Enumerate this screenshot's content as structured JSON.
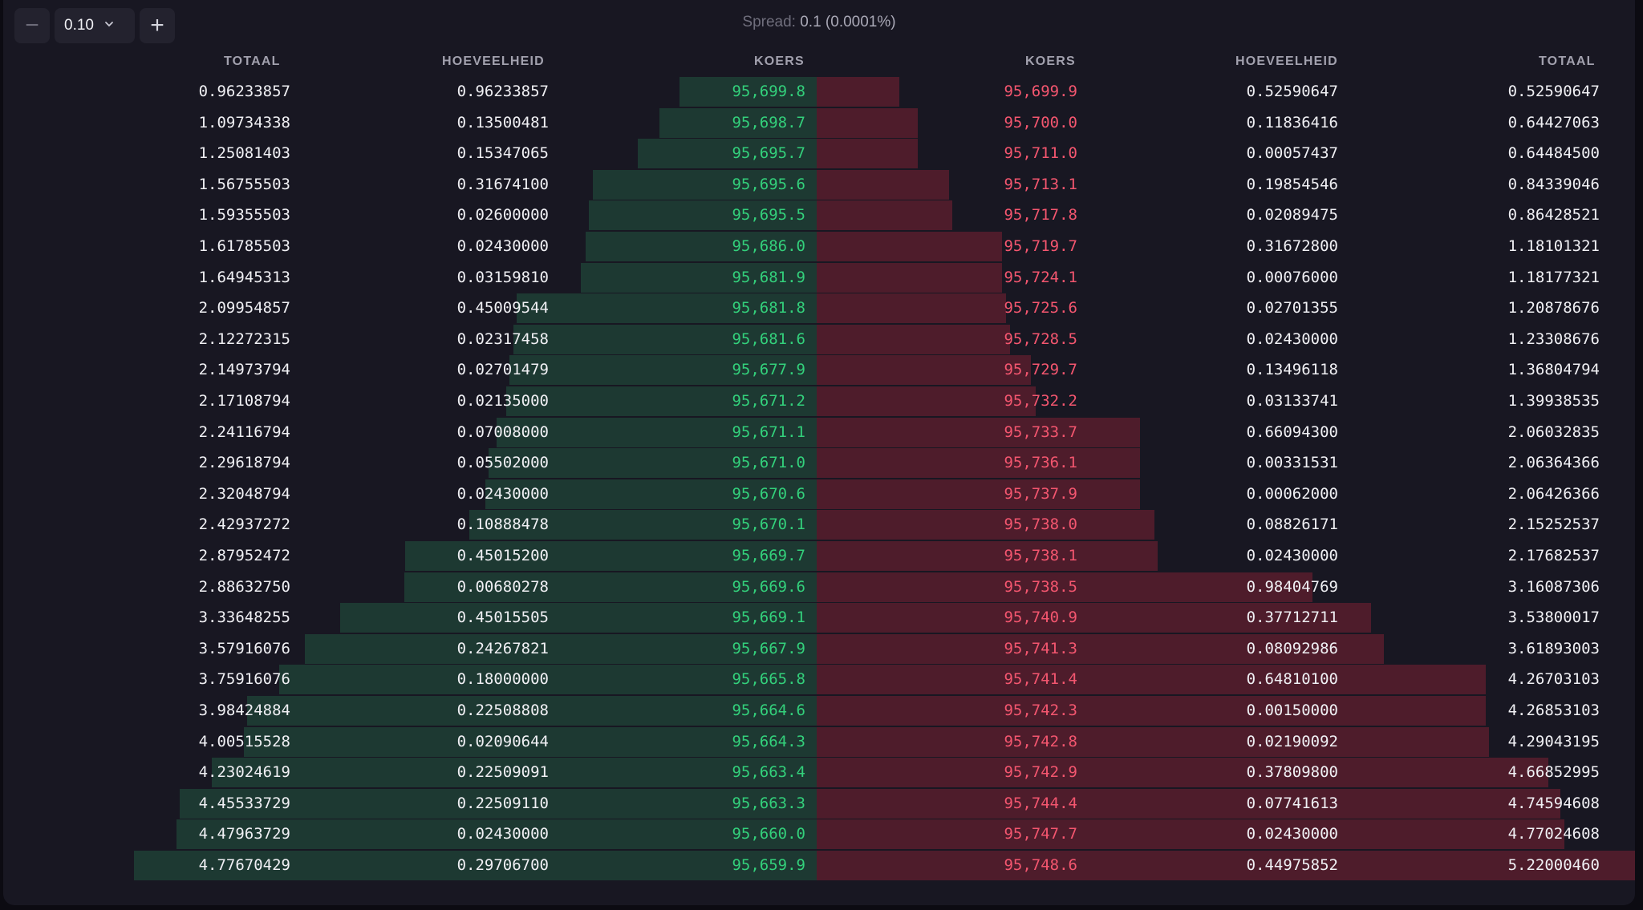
{
  "toolbar": {
    "decrement_symbol": "−",
    "increment_symbol": "+",
    "tick_size": "0.10",
    "chevron": "⌄"
  },
  "spread": {
    "label": "Spread:",
    "value": "0.1 (0.0001%)"
  },
  "headers": {
    "bid_total": "TOTAAL",
    "bid_amount": "HOEVEELHEID",
    "bid_price": "KOERS",
    "ask_price": "KOERS",
    "ask_amount": "HOEVEELHEID",
    "ask_total": "TOTAAL"
  },
  "colors": {
    "bid_price": "#33d07b",
    "ask_price": "#f4566f",
    "bid_depth": "#1d3932",
    "ask_depth": "#4e1c2b",
    "background": "#181722"
  },
  "orderbook": {
    "max_total": 5.2200046,
    "bids": [
      {
        "total": "0.96233857",
        "amount": "0.96233857",
        "price": "95,699.8"
      },
      {
        "total": "1.09734338",
        "amount": "0.13500481",
        "price": "95,698.7"
      },
      {
        "total": "1.25081403",
        "amount": "0.15347065",
        "price": "95,695.7"
      },
      {
        "total": "1.56755503",
        "amount": "0.31674100",
        "price": "95,695.6"
      },
      {
        "total": "1.59355503",
        "amount": "0.02600000",
        "price": "95,695.5"
      },
      {
        "total": "1.61785503",
        "amount": "0.02430000",
        "price": "95,686.0"
      },
      {
        "total": "1.64945313",
        "amount": "0.03159810",
        "price": "95,681.9"
      },
      {
        "total": "2.09954857",
        "amount": "0.45009544",
        "price": "95,681.8"
      },
      {
        "total": "2.12272315",
        "amount": "0.02317458",
        "price": "95,681.6"
      },
      {
        "total": "2.14973794",
        "amount": "0.02701479",
        "price": "95,677.9"
      },
      {
        "total": "2.17108794",
        "amount": "0.02135000",
        "price": "95,671.2"
      },
      {
        "total": "2.24116794",
        "amount": "0.07008000",
        "price": "95,671.1"
      },
      {
        "total": "2.29618794",
        "amount": "0.05502000",
        "price": "95,671.0"
      },
      {
        "total": "2.32048794",
        "amount": "0.02430000",
        "price": "95,670.6"
      },
      {
        "total": "2.42937272",
        "amount": "0.10888478",
        "price": "95,670.1"
      },
      {
        "total": "2.87952472",
        "amount": "0.45015200",
        "price": "95,669.7"
      },
      {
        "total": "2.88632750",
        "amount": "0.00680278",
        "price": "95,669.6"
      },
      {
        "total": "3.33648255",
        "amount": "0.45015505",
        "price": "95,669.1"
      },
      {
        "total": "3.57916076",
        "amount": "0.24267821",
        "price": "95,667.9"
      },
      {
        "total": "3.75916076",
        "amount": "0.18000000",
        "price": "95,665.8"
      },
      {
        "total": "3.98424884",
        "amount": "0.22508808",
        "price": "95,664.6"
      },
      {
        "total": "4.00515528",
        "amount": "0.02090644",
        "price": "95,664.3"
      },
      {
        "total": "4.23024619",
        "amount": "0.22509091",
        "price": "95,663.4"
      },
      {
        "total": "4.45533729",
        "amount": "0.22509110",
        "price": "95,663.3"
      },
      {
        "total": "4.47963729",
        "amount": "0.02430000",
        "price": "95,660.0"
      },
      {
        "total": "4.77670429",
        "amount": "0.29706700",
        "price": "95,659.9"
      }
    ],
    "asks": [
      {
        "price": "95,699.9",
        "amount": "0.52590647",
        "total": "0.52590647"
      },
      {
        "price": "95,700.0",
        "amount": "0.11836416",
        "total": "0.64427063"
      },
      {
        "price": "95,711.0",
        "amount": "0.00057437",
        "total": "0.64484500"
      },
      {
        "price": "95,713.1",
        "amount": "0.19854546",
        "total": "0.84339046"
      },
      {
        "price": "95,717.8",
        "amount": "0.02089475",
        "total": "0.86428521"
      },
      {
        "price": "95,719.7",
        "amount": "0.31672800",
        "total": "1.18101321"
      },
      {
        "price": "95,724.1",
        "amount": "0.00076000",
        "total": "1.18177321"
      },
      {
        "price": "95,725.6",
        "amount": "0.02701355",
        "total": "1.20878676"
      },
      {
        "price": "95,728.5",
        "amount": "0.02430000",
        "total": "1.23308676"
      },
      {
        "price": "95,729.7",
        "amount": "0.13496118",
        "total": "1.36804794"
      },
      {
        "price": "95,732.2",
        "amount": "0.03133741",
        "total": "1.39938535"
      },
      {
        "price": "95,733.7",
        "amount": "0.66094300",
        "total": "2.06032835"
      },
      {
        "price": "95,736.1",
        "amount": "0.00331531",
        "total": "2.06364366"
      },
      {
        "price": "95,737.9",
        "amount": "0.00062000",
        "total": "2.06426366"
      },
      {
        "price": "95,738.0",
        "amount": "0.08826171",
        "total": "2.15252537"
      },
      {
        "price": "95,738.1",
        "amount": "0.02430000",
        "total": "2.17682537"
      },
      {
        "price": "95,738.5",
        "amount": "0.98404769",
        "total": "3.16087306"
      },
      {
        "price": "95,740.9",
        "amount": "0.37712711",
        "total": "3.53800017"
      },
      {
        "price": "95,741.3",
        "amount": "0.08092986",
        "total": "3.61893003"
      },
      {
        "price": "95,741.4",
        "amount": "0.64810100",
        "total": "4.26703103"
      },
      {
        "price": "95,742.3",
        "amount": "0.00150000",
        "total": "4.26853103"
      },
      {
        "price": "95,742.8",
        "amount": "0.02190092",
        "total": "4.29043195"
      },
      {
        "price": "95,742.9",
        "amount": "0.37809800",
        "total": "4.66852995"
      },
      {
        "price": "95,744.4",
        "amount": "0.07741613",
        "total": "4.74594608"
      },
      {
        "price": "95,747.7",
        "amount": "0.02430000",
        "total": "4.77024608"
      },
      {
        "price": "95,748.6",
        "amount": "0.44975852",
        "total": "5.22000460"
      }
    ]
  }
}
